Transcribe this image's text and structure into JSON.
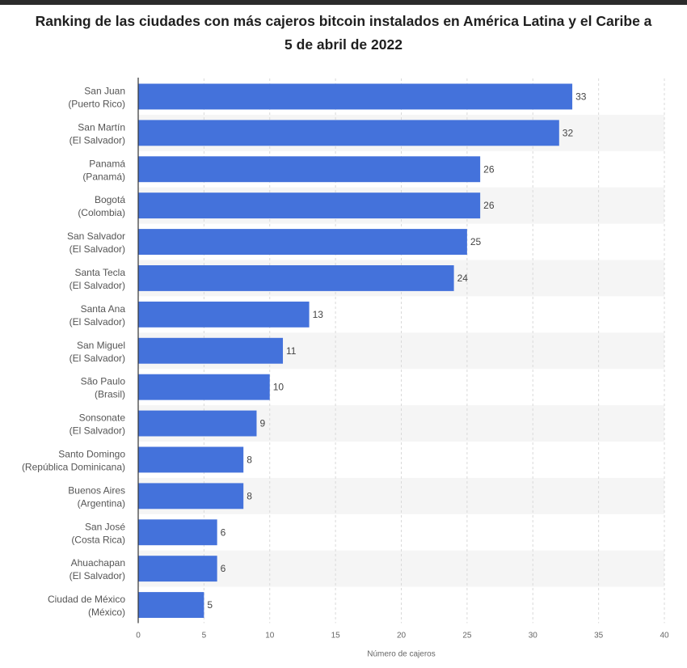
{
  "title": "Ranking de las ciudades con más cajeros bitcoin instalados en América Latina y el Caribe a 5 de abril de 2022",
  "colors": {
    "bar": "#4472db",
    "stripe": "#f5f5f5",
    "grid": "#d9d9d9",
    "axis": "#333333"
  },
  "chart_data": {
    "type": "bar",
    "orientation": "horizontal",
    "title": "Ranking de las ciudades con más cajeros bitcoin instalados en América Latina y el Caribe a 5 de abril de 2022",
    "xlabel": "Número de cajeros",
    "ylabel": "",
    "xlim": [
      0,
      40
    ],
    "xticks": [
      0,
      5,
      10,
      15,
      20,
      25,
      30,
      35,
      40
    ],
    "grid": true,
    "legend": "none",
    "categories": [
      [
        "San Juan",
        "(Puerto Rico)"
      ],
      [
        "San Martín",
        "(El Salvador)"
      ],
      [
        "Panamá",
        "(Panamá)"
      ],
      [
        "Bogotá",
        "(Colombia)"
      ],
      [
        "San Salvador",
        "(El Salvador)"
      ],
      [
        "Santa Tecla",
        "(El Salvador)"
      ],
      [
        "Santa Ana",
        "(El Salvador)"
      ],
      [
        "San Miguel",
        "(El Salvador)"
      ],
      [
        "São Paulo",
        "(Brasil)"
      ],
      [
        "Sonsonate",
        "(El Salvador)"
      ],
      [
        "Santo Domingo",
        "(República Dominicana)"
      ],
      [
        "Buenos Aires",
        "(Argentina)"
      ],
      [
        "San José",
        "(Costa Rica)"
      ],
      [
        "Ahuachapan",
        "(El Salvador)"
      ],
      [
        "Ciudad de México",
        "(México)"
      ]
    ],
    "values": [
      33,
      32,
      26,
      26,
      25,
      24,
      13,
      11,
      10,
      9,
      8,
      8,
      6,
      6,
      5
    ]
  }
}
